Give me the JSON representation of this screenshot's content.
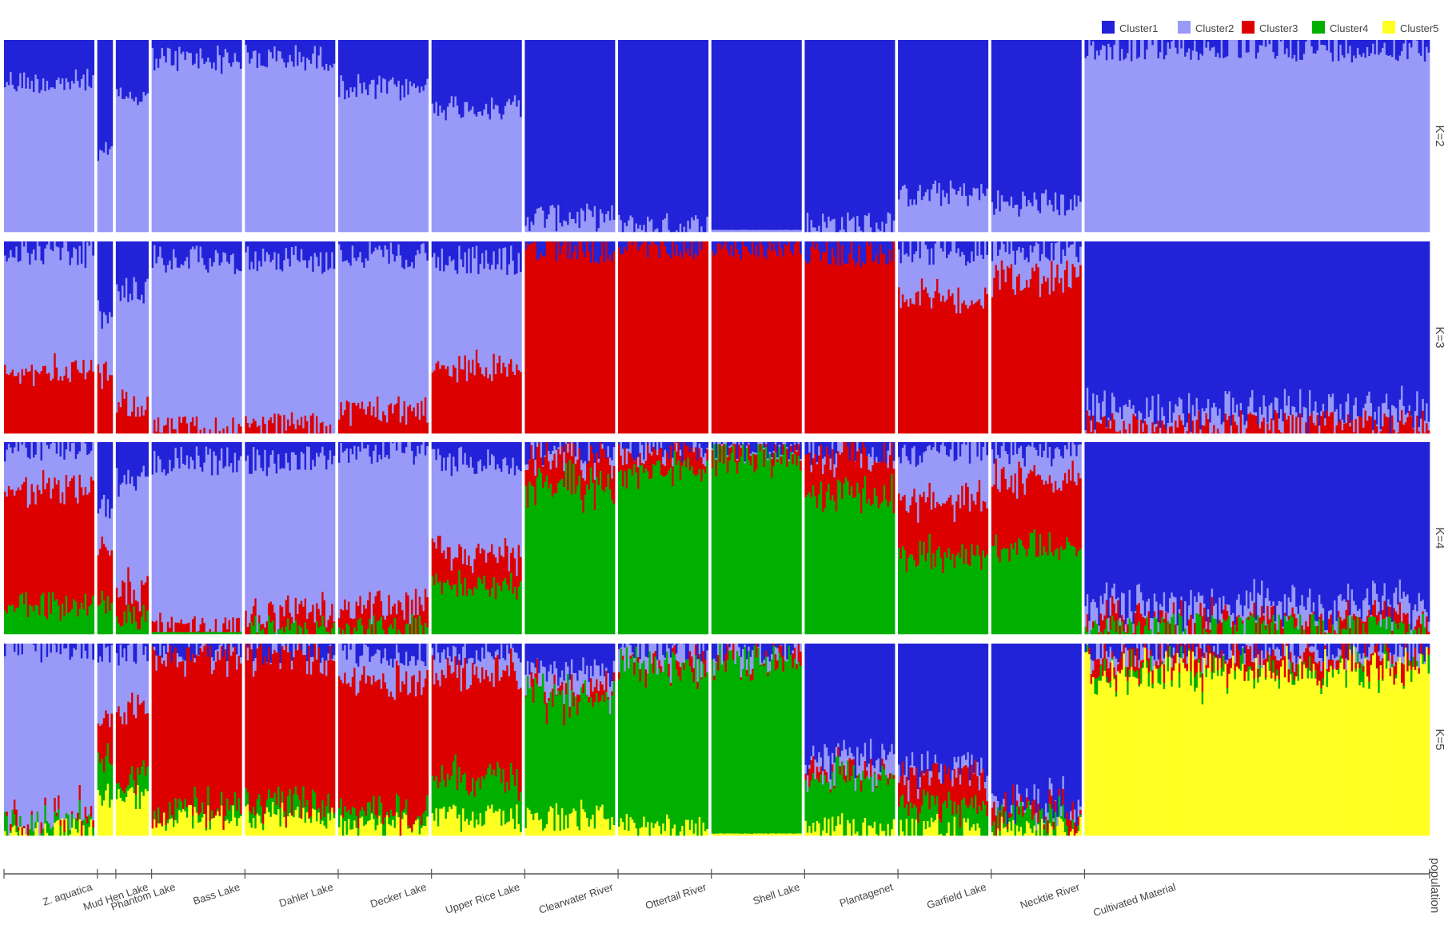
{
  "chart_data": {
    "type": "structure_barplot",
    "xlabel": "population",
    "legend_position": "top-right",
    "clusters": [
      {
        "name": "Cluster1",
        "color": "#2222d8"
      },
      {
        "name": "Cluster2",
        "color": "#9999f8"
      },
      {
        "name": "Cluster3",
        "color": "#dd0000"
      },
      {
        "name": "Cluster4",
        "color": "#00b000"
      },
      {
        "name": "Cluster5",
        "color": "#ffff22"
      }
    ],
    "k_values": [
      "K=2",
      "K=3",
      "K=4",
      "K=5"
    ],
    "populations": [
      {
        "name": "Z. aquatica",
        "n": 47
      },
      {
        "name": "Mud Hen Lake",
        "n": 8
      },
      {
        "name": "Phantom Lake",
        "n": 17
      },
      {
        "name": "Bass Lake",
        "n": 47
      },
      {
        "name": "Dahler Lake",
        "n": 47
      },
      {
        "name": "Decker Lake",
        "n": 47
      },
      {
        "name": "Upper Rice Lake",
        "n": 47
      },
      {
        "name": "Clearwater River",
        "n": 47
      },
      {
        "name": "Ottertail River",
        "n": 47
      },
      {
        "name": "Shell Lake",
        "n": 47
      },
      {
        "name": "Plantagenet",
        "n": 47
      },
      {
        "name": "Garfield Lake",
        "n": 47
      },
      {
        "name": "Necktie River",
        "n": 47
      },
      {
        "name": "Cultivated Material",
        "n": 180
      }
    ],
    "mean_membership": {
      "K=2": [
        [
          0.22,
          0.78
        ],
        [
          0.6,
          0.4
        ],
        [
          0.3,
          0.7
        ],
        [
          0.1,
          0.9
        ],
        [
          0.1,
          0.9
        ],
        [
          0.25,
          0.75
        ],
        [
          0.35,
          0.65
        ],
        [
          0.92,
          0.08
        ],
        [
          0.97,
          0.03
        ],
        [
          0.99,
          0.01
        ],
        [
          0.96,
          0.04
        ],
        [
          0.8,
          0.2
        ],
        [
          0.85,
          0.15
        ],
        [
          0.04,
          0.96
        ]
      ],
      "K=3": [
        [
          0.06,
          0.62,
          0.32
        ],
        [
          0.4,
          0.3,
          0.3
        ],
        [
          0.25,
          0.6,
          0.15
        ],
        [
          0.1,
          0.88,
          0.02
        ],
        [
          0.1,
          0.86,
          0.04
        ],
        [
          0.08,
          0.8,
          0.12
        ],
        [
          0.1,
          0.55,
          0.35
        ],
        [
          0.04,
          0.0,
          0.96
        ],
        [
          0.02,
          0.0,
          0.98
        ],
        [
          0.02,
          0.0,
          0.98
        ],
        [
          0.06,
          0.0,
          0.94
        ],
        [
          0.05,
          0.25,
          0.7
        ],
        [
          0.05,
          0.15,
          0.8
        ],
        [
          0.88,
          0.07,
          0.05
        ]
      ],
      "K=4": [
        [
          0.03,
          0.2,
          0.62,
          0.15
        ],
        [
          0.35,
          0.2,
          0.3,
          0.15
        ],
        [
          0.2,
          0.55,
          0.15,
          0.1
        ],
        [
          0.1,
          0.86,
          0.03,
          0.01
        ],
        [
          0.1,
          0.8,
          0.07,
          0.03
        ],
        [
          0.05,
          0.8,
          0.12,
          0.03
        ],
        [
          0.1,
          0.48,
          0.17,
          0.25
        ],
        [
          0.05,
          0.03,
          0.15,
          0.77
        ],
        [
          0.03,
          0.02,
          0.08,
          0.87
        ],
        [
          0.03,
          0.01,
          0.04,
          0.92
        ],
        [
          0.04,
          0.02,
          0.2,
          0.74
        ],
        [
          0.05,
          0.25,
          0.3,
          0.4
        ],
        [
          0.05,
          0.15,
          0.35,
          0.45
        ],
        [
          0.85,
          0.08,
          0.04,
          0.03
        ]
      ],
      "K=5": [
        [
          0.02,
          0.9,
          0.02,
          0.04,
          0.02
        ],
        [
          0.05,
          0.35,
          0.2,
          0.2,
          0.2
        ],
        [
          0.05,
          0.3,
          0.35,
          0.1,
          0.2
        ],
        [
          0.03,
          0.02,
          0.8,
          0.05,
          0.1
        ],
        [
          0.03,
          0.02,
          0.78,
          0.07,
          0.1
        ],
        [
          0.05,
          0.15,
          0.7,
          0.05,
          0.05
        ],
        [
          0.05,
          0.1,
          0.55,
          0.2,
          0.1
        ],
        [
          0.15,
          0.08,
          0.05,
          0.62,
          0.1
        ],
        [
          0.02,
          0.06,
          0.03,
          0.86,
          0.03
        ],
        [
          0.02,
          0.05,
          0.02,
          0.9,
          0.01
        ],
        [
          0.58,
          0.08,
          0.04,
          0.27,
          0.03
        ],
        [
          0.65,
          0.05,
          0.15,
          0.12,
          0.03
        ],
        [
          0.85,
          0.03,
          0.04,
          0.06,
          0.02
        ],
        [
          0.02,
          0.03,
          0.06,
          0.02,
          0.87
        ]
      ]
    }
  }
}
